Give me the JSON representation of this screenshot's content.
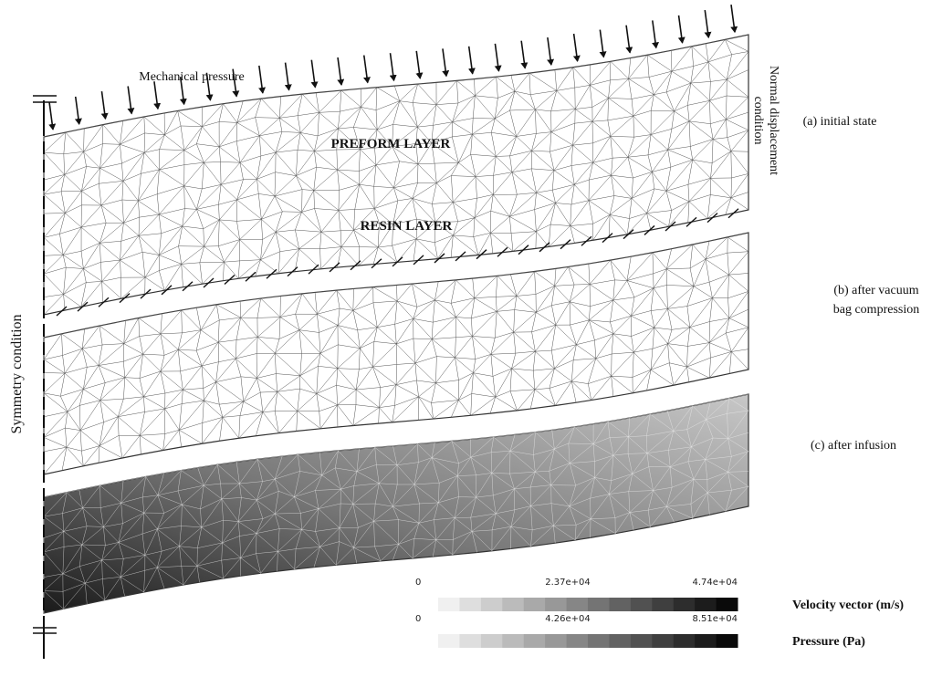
{
  "labels": {
    "mechanical_pressure": "Mechanical pressure",
    "preform_layer": "PREFORM LAYER",
    "resin_layer": "RESIN LAYER",
    "normal_displacement": [
      "Normal displacement",
      "condition"
    ],
    "symmetry": "Symmetry condition",
    "states": [
      [
        "(a) initial state"
      ],
      [
        "(b) after vacuum",
        "bag compression"
      ],
      [
        "(c) after infusion"
      ]
    ]
  },
  "legends": [
    {
      "title": "Velocity vector (m/s)",
      "ticks": [
        "0",
        "2.37e+04",
        "4.74e+04"
      ]
    },
    {
      "title": "Pressure (Pa)",
      "ticks": [
        "0",
        "4.26e+04",
        "8.51e+04"
      ]
    }
  ]
}
